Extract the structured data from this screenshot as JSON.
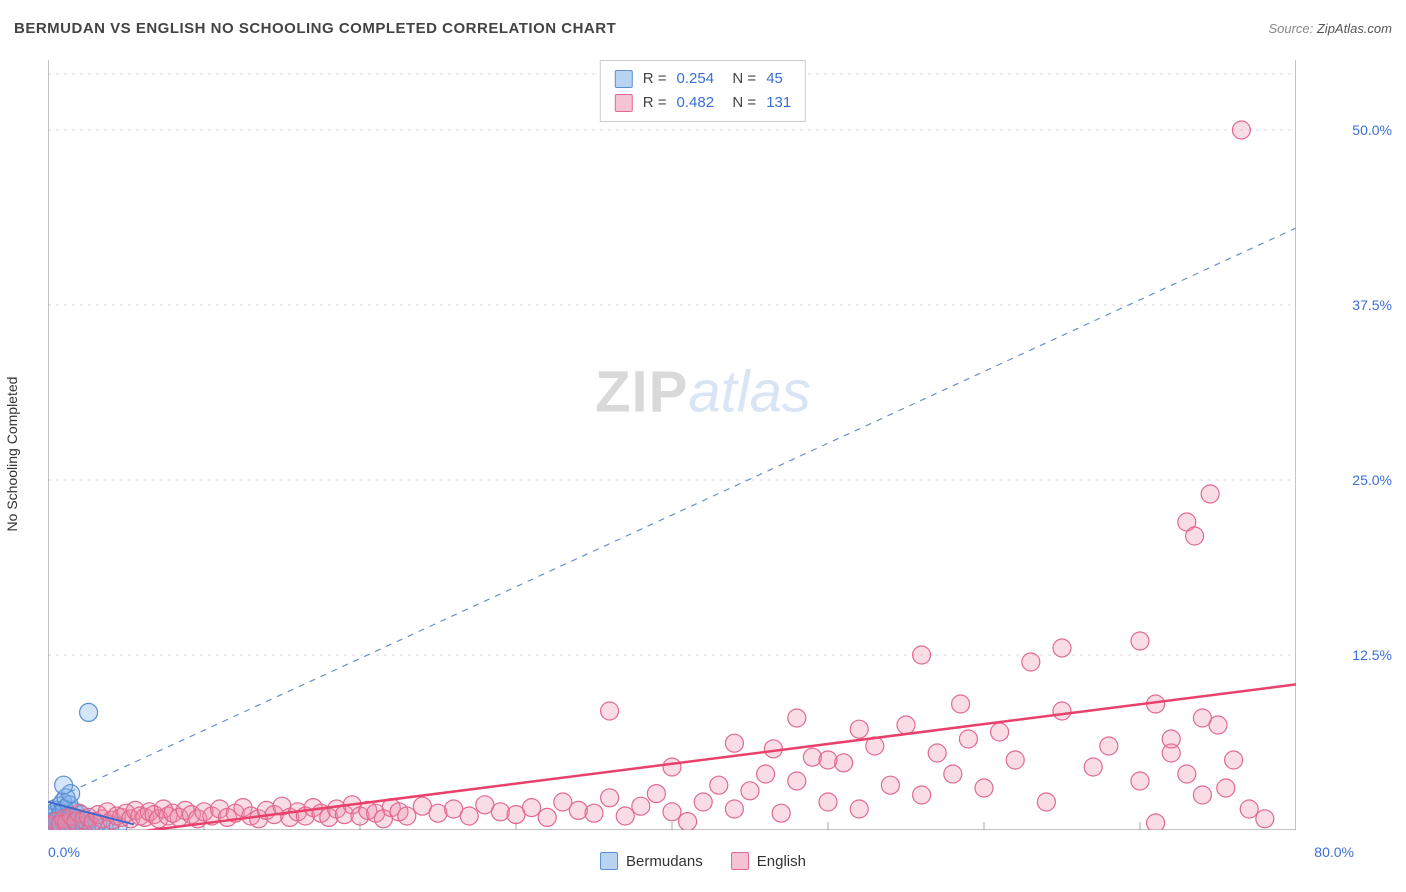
{
  "title": "BERMUDAN VS ENGLISH NO SCHOOLING COMPLETED CORRELATION CHART",
  "source_prefix": "Source: ",
  "source_name": "ZipAtlas.com",
  "y_axis_label": "No Schooling Completed",
  "watermark": {
    "zip": "ZIP",
    "atlas": "atlas"
  },
  "chart": {
    "type": "scatter",
    "background_color": "#ffffff",
    "grid_color": "#d8d8d8",
    "grid_dash": "3,5",
    "axis_color": "#888888",
    "tick_color": "#aaaaaa",
    "label_color": "#3b6fd6",
    "xlim": [
      0,
      80
    ],
    "ylim": [
      0,
      55
    ],
    "x_ticks": [
      0,
      10,
      20,
      30,
      40,
      50,
      60,
      70,
      80
    ],
    "x_tick_labels_shown": {
      "0": "0.0%",
      "80": "80.0%"
    },
    "y_ticks": [
      12.5,
      25.0,
      37.5,
      50.0
    ],
    "y_tick_labels": [
      "12.5%",
      "25.0%",
      "37.5%",
      "50.0%"
    ],
    "y_grid_extra_top": 54,
    "identity_line": {
      "color": "#6a8fc7",
      "dash": "6,6",
      "width": 1.2,
      "x0": 0,
      "y0": 2,
      "x1": 80,
      "y1": 43
    },
    "marker_radius": 9,
    "marker_stroke_width": 1.2,
    "series": [
      {
        "name": "Bermudans",
        "fill": "rgba(120,170,235,0.32)",
        "stroke": "#5a8fd0",
        "swatch_fill": "#b9d4f3",
        "swatch_stroke": "#5a8fd0",
        "R": "0.254",
        "N": "45",
        "trend": {
          "color": "#4169c9",
          "width": 2,
          "x0": 0,
          "y0": 2.0,
          "x1": 5.5,
          "y1": 0.4
        },
        "points": [
          [
            0.1,
            0.1
          ],
          [
            0.2,
            0.2
          ],
          [
            0.15,
            0.4
          ],
          [
            0.3,
            0.1
          ],
          [
            0.25,
            0.6
          ],
          [
            0.4,
            0.3
          ],
          [
            0.35,
            0.9
          ],
          [
            0.5,
            0.2
          ],
          [
            0.45,
            1.1
          ],
          [
            0.6,
            0.4
          ],
          [
            0.55,
            1.4
          ],
          [
            0.7,
            0.2
          ],
          [
            0.65,
            0.8
          ],
          [
            0.8,
            0.5
          ],
          [
            0.75,
            1.7
          ],
          [
            0.9,
            0.3
          ],
          [
            0.85,
            1.2
          ],
          [
            1.0,
            0.6
          ],
          [
            0.95,
            2.0
          ],
          [
            1.1,
            0.4
          ],
          [
            1.05,
            1.5
          ],
          [
            1.2,
            0.7
          ],
          [
            1.15,
            2.3
          ],
          [
            1.3,
            0.3
          ],
          [
            1.25,
            1.0
          ],
          [
            1.4,
            0.6
          ],
          [
            1.35,
            1.8
          ],
          [
            1.5,
            0.2
          ],
          [
            1.45,
            2.6
          ],
          [
            1.6,
            0.9
          ],
          [
            1.55,
            0.4
          ],
          [
            1.7,
            1.3
          ],
          [
            1.8,
            0.5
          ],
          [
            1.9,
            0.7
          ],
          [
            2.0,
            0.3
          ],
          [
            2.1,
            1.1
          ],
          [
            2.3,
            0.4
          ],
          [
            2.5,
            0.6
          ],
          [
            2.8,
            0.3
          ],
          [
            3.2,
            0.5
          ],
          [
            3.6,
            0.2
          ],
          [
            4.0,
            0.4
          ],
          [
            4.5,
            0.3
          ],
          [
            1.0,
            3.2
          ],
          [
            2.6,
            8.4
          ]
        ]
      },
      {
        "name": "English",
        "fill": "rgba(240,140,170,0.30)",
        "stroke": "#e06a8f",
        "swatch_fill": "#f5c3d3",
        "swatch_stroke": "#e06a8f",
        "R": "0.482",
        "N": "131",
        "trend": {
          "color": "#e8416b",
          "width": 2.5,
          "x0": 1,
          "y0": -0.8,
          "x1": 80,
          "y1": 10.4
        },
        "points": [
          [
            0.3,
            0.3
          ],
          [
            0.5,
            0.6
          ],
          [
            0.8,
            0.4
          ],
          [
            1.0,
            0.8
          ],
          [
            1.2,
            0.5
          ],
          [
            1.5,
            1.0
          ],
          [
            1.8,
            0.6
          ],
          [
            2.0,
            1.2
          ],
          [
            2.3,
            0.7
          ],
          [
            2.6,
            0.9
          ],
          [
            2.9,
            0.6
          ],
          [
            3.2,
            1.1
          ],
          [
            3.5,
            0.8
          ],
          [
            3.8,
            1.3
          ],
          [
            4.1,
            0.7
          ],
          [
            4.4,
            1.0
          ],
          [
            4.7,
            0.9
          ],
          [
            5.0,
            1.2
          ],
          [
            5.3,
            0.8
          ],
          [
            5.6,
            1.4
          ],
          [
            5.9,
            1.0
          ],
          [
            6.2,
            0.9
          ],
          [
            6.5,
            1.3
          ],
          [
            6.8,
            1.1
          ],
          [
            7.1,
            0.8
          ],
          [
            7.4,
            1.5
          ],
          [
            7.7,
            1.0
          ],
          [
            8.0,
            1.2
          ],
          [
            8.4,
            0.9
          ],
          [
            8.8,
            1.4
          ],
          [
            9.2,
            1.1
          ],
          [
            9.6,
            0.8
          ],
          [
            10.0,
            1.3
          ],
          [
            10.5,
            1.0
          ],
          [
            11.0,
            1.5
          ],
          [
            11.5,
            0.9
          ],
          [
            12.0,
            1.2
          ],
          [
            12.5,
            1.6
          ],
          [
            13.0,
            1.0
          ],
          [
            13.5,
            0.8
          ],
          [
            14.0,
            1.4
          ],
          [
            14.5,
            1.1
          ],
          [
            15.0,
            1.7
          ],
          [
            15.5,
            0.9
          ],
          [
            16.0,
            1.3
          ],
          [
            16.5,
            1.0
          ],
          [
            17.0,
            1.6
          ],
          [
            17.5,
            1.2
          ],
          [
            18.0,
            0.9
          ],
          [
            18.5,
            1.5
          ],
          [
            19.0,
            1.1
          ],
          [
            19.5,
            1.8
          ],
          [
            20.0,
            1.0
          ],
          [
            20.5,
            1.4
          ],
          [
            21.0,
            1.2
          ],
          [
            21.5,
            0.8
          ],
          [
            22.0,
            1.6
          ],
          [
            22.5,
            1.3
          ],
          [
            23.0,
            1.0
          ],
          [
            24.0,
            1.7
          ],
          [
            25.0,
            1.2
          ],
          [
            26.0,
            1.5
          ],
          [
            27.0,
            1.0
          ],
          [
            28.0,
            1.8
          ],
          [
            29.0,
            1.3
          ],
          [
            30.0,
            1.1
          ],
          [
            31.0,
            1.6
          ],
          [
            32.0,
            0.9
          ],
          [
            33.0,
            2.0
          ],
          [
            34.0,
            1.4
          ],
          [
            35.0,
            1.2
          ],
          [
            36.0,
            2.3
          ],
          [
            37.0,
            1.0
          ],
          [
            38.0,
            1.7
          ],
          [
            39.0,
            2.6
          ],
          [
            40.0,
            1.3
          ],
          [
            41.0,
            0.6
          ],
          [
            36.0,
            8.5
          ],
          [
            42.0,
            2.0
          ],
          [
            43.0,
            3.2
          ],
          [
            44.0,
            1.5
          ],
          [
            45.0,
            2.8
          ],
          [
            46.0,
            4.0
          ],
          [
            47.0,
            1.2
          ],
          [
            48.0,
            3.5
          ],
          [
            49.0,
            5.2
          ],
          [
            50.0,
            2.0
          ],
          [
            51.0,
            4.8
          ],
          [
            52.0,
            1.5
          ],
          [
            53.0,
            6.0
          ],
          [
            54.0,
            3.2
          ],
          [
            55.0,
            7.5
          ],
          [
            56.0,
            2.5
          ],
          [
            57.0,
            5.5
          ],
          [
            58.0,
            4.0
          ],
          [
            48.0,
            8.0
          ],
          [
            60.0,
            3.0
          ],
          [
            61.0,
            7.0
          ],
          [
            62.0,
            5.0
          ],
          [
            56.0,
            12.5
          ],
          [
            64.0,
            2.0
          ],
          [
            65.0,
            8.5
          ],
          [
            63.0,
            12.0
          ],
          [
            67.0,
            4.5
          ],
          [
            68.0,
            6.0
          ],
          [
            65.0,
            13.0
          ],
          [
            70.0,
            3.5
          ],
          [
            71.0,
            9.0
          ],
          [
            72.0,
            5.5
          ],
          [
            70.0,
            13.5
          ],
          [
            74.0,
            2.5
          ],
          [
            75.0,
            7.5
          ],
          [
            73.0,
            22.0
          ],
          [
            73.5,
            21.0
          ],
          [
            74.5,
            24.0
          ],
          [
            71.0,
            0.5
          ],
          [
            72.0,
            6.5
          ],
          [
            73.0,
            4.0
          ],
          [
            74.0,
            8.0
          ],
          [
            75.5,
            3.0
          ],
          [
            76.0,
            5.0
          ],
          [
            77.0,
            1.5
          ],
          [
            78.0,
            0.8
          ],
          [
            76.5,
            50.0
          ],
          [
            46.5,
            5.8
          ],
          [
            52.0,
            7.2
          ],
          [
            58.5,
            9.0
          ],
          [
            50.0,
            5.0
          ],
          [
            59.0,
            6.5
          ],
          [
            44.0,
            6.2
          ],
          [
            40.0,
            4.5
          ]
        ]
      }
    ]
  },
  "legend": {
    "series1_label": "Bermudans",
    "series2_label": "English"
  }
}
